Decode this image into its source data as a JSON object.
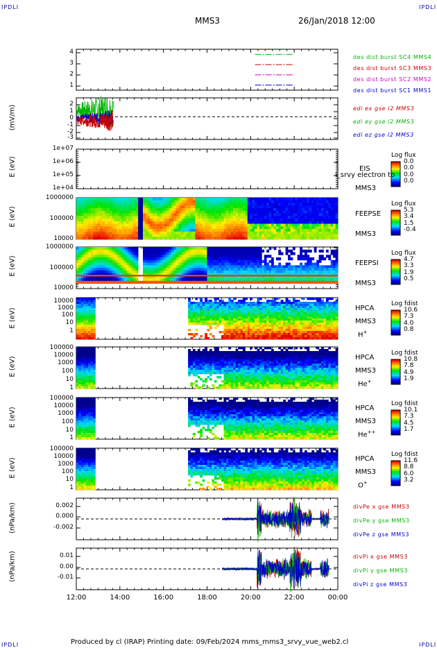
{
  "corners": {
    "tl": "IPDLI",
    "tr": "IPDLI",
    "bl": "IPDLI",
    "br": "IPDLI"
  },
  "header": {
    "spacecraft": "MMS3",
    "datetime": "26/Jan/2018 12:00"
  },
  "footer": {
    "text": "Produced by cl (IRAP)    Printing date: 09/Feb/2024    mms_mms3_srvy_vue_web2.cl"
  },
  "colors": {
    "mms1": "#0000c8",
    "mms2": "#c800c8",
    "mms3": "#c80000",
    "mms4": "#00b400",
    "x": "#c80000",
    "y": "#00b400",
    "z": "#0000c8"
  },
  "x_axis": {
    "ticks": [
      "12:00",
      "14:00",
      "16:00",
      "18:00",
      "20:00",
      "22:00",
      "00:00"
    ],
    "range_hours": [
      12,
      24
    ]
  },
  "chart_data": [
    {
      "id": "des",
      "type": "line",
      "ylabel": "",
      "yticks": [
        "4",
        "3",
        "2",
        "1"
      ],
      "ylim": [
        0.5,
        4.5
      ],
      "series": [
        {
          "name": "des dist burst SC1 MMS1",
          "color": "#0000c8",
          "y": 1,
          "x": [
            20.2,
            22.0
          ]
        },
        {
          "name": "des dist burst SC2 MMS2",
          "color": "#c800c8",
          "y": 2,
          "x": [
            20.2,
            22.0
          ]
        },
        {
          "name": "des dist burst SC3 MMS3",
          "color": "#c80000",
          "y": 3,
          "x": [
            20.2,
            22.0
          ]
        },
        {
          "name": "des dist burst SC4 MMS4",
          "color": "#00b400",
          "y": 4,
          "x": [
            20.2,
            22.0
          ]
        }
      ]
    },
    {
      "id": "edi",
      "type": "line",
      "ylabel": "(mV/m)",
      "yticks": [
        "2",
        "1",
        "0",
        "-1",
        "-2",
        "-3"
      ],
      "ylim": [
        -3,
        2.5
      ],
      "x_range": [
        12.0,
        13.7
      ],
      "series": [
        {
          "name": "edi ex gse l2 MMS3",
          "color": "#c80000"
        },
        {
          "name": "edi ey gse l2 MMS3",
          "color": "#00b400"
        },
        {
          "name": "edi ez gse l2 MMS3",
          "color": "#0000c8"
        }
      ]
    },
    {
      "id": "eis",
      "type": "heatmap",
      "ylabel": "E (eV)",
      "yticks": [
        "1e+07",
        "1e+06",
        "1e+05",
        "1e+04"
      ],
      "instrument": [
        "EIS",
        "MMS3"
      ],
      "overlay_text": "l_srvy electron to",
      "colorbar": {
        "title": "Log flux",
        "ticks": [
          "0.0",
          "0.0",
          "0.0",
          "0.0"
        ]
      }
    },
    {
      "id": "feepse",
      "type": "heatmap",
      "ylabel": "E (eV)",
      "yticks": [
        "1000000",
        "100000",
        "10000"
      ],
      "instrument": [
        "FEEPSE",
        "MMS3"
      ],
      "colorbar": {
        "title": "Log flux",
        "ticks": [
          "5.3",
          "3.4",
          "1.5",
          "-0.4"
        ]
      }
    },
    {
      "id": "feepsi",
      "type": "heatmap",
      "ylabel": "E (eV)",
      "yticks": [
        "1000000",
        "100000",
        "10000"
      ],
      "instrument": [
        "FEEPSI",
        "MMS3"
      ],
      "colorbar": {
        "title": "Log flux",
        "ticks": [
          "4.7",
          "3.3",
          "1.9",
          "0.5"
        ]
      }
    },
    {
      "id": "hpca_h",
      "type": "heatmap",
      "ylabel": "E (eV)",
      "yticks": [
        "10000",
        "1000",
        "100",
        "10",
        "1"
      ],
      "instrument": [
        "HPCA",
        "MMS3"
      ],
      "species": "H",
      "charge": "+",
      "colorbar": {
        "title": "Log fdist",
        "ticks": [
          "10.6",
          "7.3",
          "4.0",
          "0.8"
        ]
      }
    },
    {
      "id": "hpca_he1",
      "type": "heatmap",
      "ylabel": "E (eV)",
      "yticks": [
        "100000",
        "10000",
        "1000",
        "100",
        "10",
        "1"
      ],
      "instrument": [
        "HPCA",
        "MMS3"
      ],
      "species": "He",
      "charge": "+",
      "colorbar": {
        "title": "Log fdist",
        "ticks": [
          "10.8",
          "7.8",
          "4.9",
          "1.9"
        ]
      }
    },
    {
      "id": "hpca_he2",
      "type": "heatmap",
      "ylabel": "E (eV)",
      "yticks": [
        "100000",
        "10000",
        "1000",
        "100",
        "10",
        "1"
      ],
      "instrument": [
        "HPCA",
        "MMS3"
      ],
      "species": "He",
      "charge": "++",
      "colorbar": {
        "title": "Log fdist",
        "ticks": [
          "10.1",
          "7.3",
          "4.5",
          "1.7"
        ]
      }
    },
    {
      "id": "hpca_o",
      "type": "heatmap",
      "ylabel": "E (eV)",
      "yticks": [
        "100000",
        "10000",
        "1000",
        "100",
        "10",
        "1"
      ],
      "instrument": [
        "HPCA",
        "MMS3"
      ],
      "species": "O",
      "charge": "+",
      "colorbar": {
        "title": "Log fdist",
        "ticks": [
          "11.6",
          "8.8",
          "6.0",
          "3.2"
        ]
      }
    },
    {
      "id": "divpe",
      "type": "line",
      "ylabel": "(nPa/km)",
      "yticks": [
        "0.002",
        "0.000",
        "-0.002"
      ],
      "ylim": [
        -0.0035,
        0.0035
      ],
      "series": [
        {
          "name": "divPe x gse MMS3",
          "color": "#c80000"
        },
        {
          "name": "divPe y gse MMS3",
          "color": "#00b400"
        },
        {
          "name": "divPe z gse MMS3",
          "color": "#0000c8"
        }
      ]
    },
    {
      "id": "divpi",
      "type": "line",
      "ylabel": "(nPa/km)",
      "yticks": [
        "0.01",
        "0.00",
        "-0.01"
      ],
      "ylim": [
        -0.016,
        0.016
      ],
      "series": [
        {
          "name": "divPi x gse MMS3",
          "color": "#c80000"
        },
        {
          "name": "divPi y gse MMS3",
          "color": "#00b400"
        },
        {
          "name": "divPi z gse MMS3",
          "color": "#0000c8"
        }
      ]
    }
  ]
}
